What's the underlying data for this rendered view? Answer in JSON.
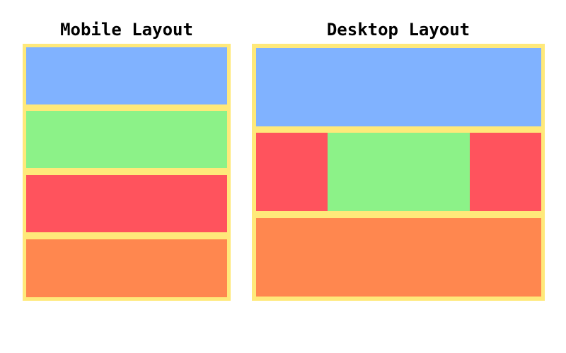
{
  "mobile": {
    "title": "Mobile Layout"
  },
  "desktop": {
    "title": "Desktop Layout"
  },
  "colors": {
    "frame": "#ffe97a",
    "header": "#80b2ff",
    "main": "#8cf288",
    "sidebar": "#ff535d",
    "footer": "#ff874f"
  }
}
